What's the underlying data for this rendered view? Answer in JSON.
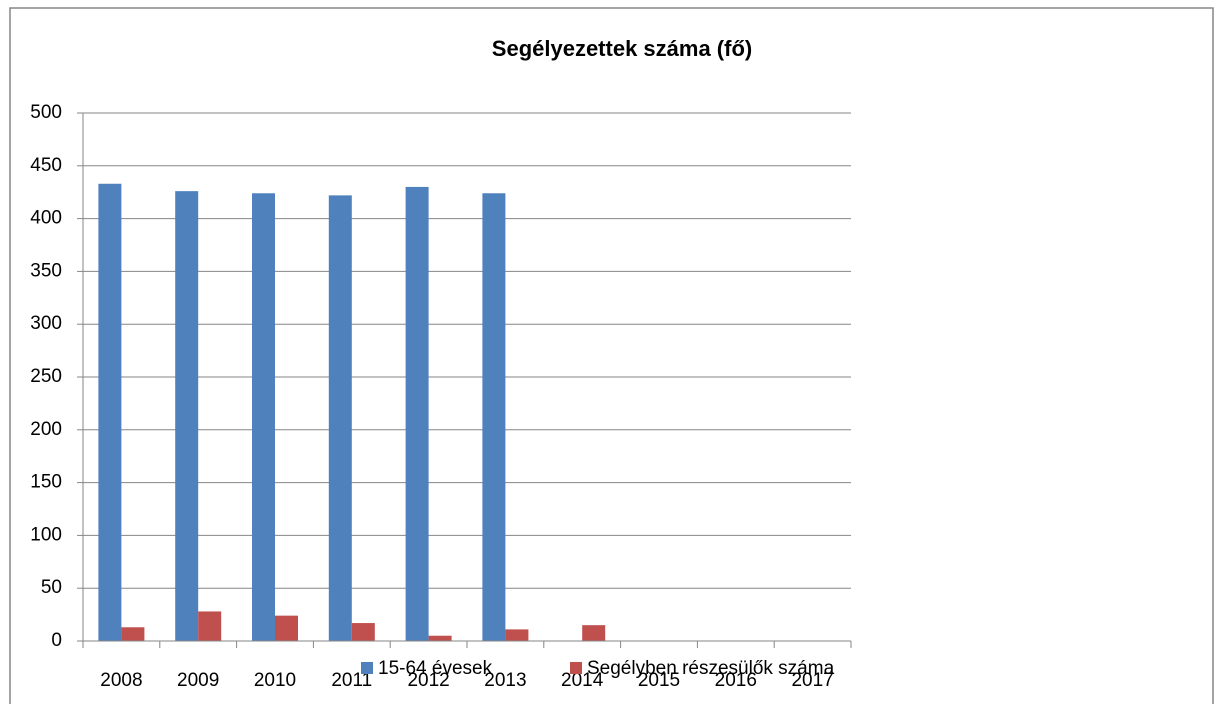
{
  "chart_data": {
    "type": "bar",
    "title": "Segélyezettek száma (fő)",
    "categories": [
      "2008",
      "2009",
      "2010",
      "2011",
      "2012",
      "2013",
      "2014",
      "2015",
      "2016",
      "2017"
    ],
    "series": [
      {
        "name": "15-64 évesek",
        "color": "#4f81bd",
        "values": [
          433,
          426,
          424,
          422,
          430,
          424,
          null,
          null,
          null,
          null
        ]
      },
      {
        "name": "Segélyben részesülők száma",
        "color": "#c0504d",
        "values": [
          13,
          28,
          24,
          17,
          5,
          11,
          15,
          null,
          null,
          null
        ]
      }
    ],
    "ylim": [
      0,
      500
    ],
    "yticks": [
      0,
      50,
      100,
      150,
      200,
      250,
      300,
      350,
      400,
      450,
      500
    ],
    "grid": true,
    "legend": "bottom"
  }
}
